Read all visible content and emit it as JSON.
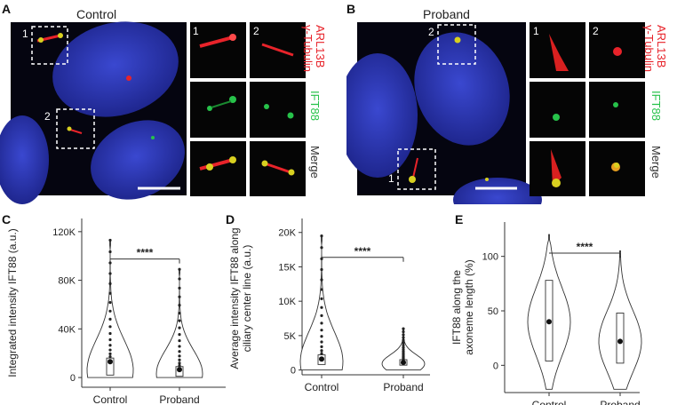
{
  "panels": {
    "A": {
      "letter": "A",
      "title": "Control"
    },
    "B": {
      "letter": "B",
      "title": "Proband"
    }
  },
  "image_panels": {
    "zoom_numbers": [
      "1",
      "2"
    ],
    "row_labels": {
      "arl13b": "ARL13B",
      "tubulin": "γ-Tubulin",
      "ift88": "IFT88",
      "merge": "Merge"
    },
    "colors": {
      "nucleus": "#2a38b8",
      "red": "#e8232a",
      "green": "#27c24a",
      "merge": "#d8d020"
    }
  },
  "chart_data": [
    {
      "panel": "C",
      "type": "violin",
      "categories": [
        "Control",
        "Proband"
      ],
      "ylabel": "Integrated intensity IFT88 (a.u.)",
      "yticks": [
        "0",
        "40K",
        "80K",
        "120K"
      ],
      "ylim": [
        -8000,
        125000
      ],
      "significance": "****",
      "summary": [
        {
          "category": "Control",
          "median": 6000,
          "mean": 13000,
          "q1": 2000,
          "q3": 16000,
          "whisker_low": 0,
          "whisker_high": 113000
        },
        {
          "category": "Proband",
          "median": 3000,
          "mean": 6500,
          "q1": 1000,
          "q3": 9000,
          "whisker_low": 0,
          "whisker_high": 89000
        }
      ]
    },
    {
      "panel": "D",
      "type": "violin",
      "categories": [
        "Control",
        "Proband"
      ],
      "ylabel_lines": [
        "Average intensity IFT88 along",
        "ciliary center line (a.u.)"
      ],
      "yticks": [
        "0",
        "5K",
        "10K",
        "15K",
        "20K"
      ],
      "ylim": [
        -700,
        21000
      ],
      "significance": "****",
      "summary": [
        {
          "category": "Control",
          "median": 1200,
          "mean": 1600,
          "q1": 800,
          "q3": 2200,
          "whisker_low": 0,
          "whisker_high": 19500
        },
        {
          "category": "Proband",
          "median": 900,
          "mean": 1100,
          "q1": 700,
          "q3": 1500,
          "whisker_low": 0,
          "whisker_high": 6000
        }
      ]
    },
    {
      "panel": "E",
      "type": "violin",
      "categories": [
        "Control",
        "Proband"
      ],
      "ylabel_lines": [
        "IFT88 along the",
        "axoneme length (%)"
      ],
      "yticks": [
        "0",
        "50",
        "100"
      ],
      "ylim": [
        -25,
        125
      ],
      "significance": "****",
      "summary": [
        {
          "category": "Control",
          "median": 40,
          "mean": 40,
          "q1": 4,
          "q3": 78,
          "whisker_low": -22,
          "whisker_high": 120
        },
        {
          "category": "Proband",
          "median": 22,
          "mean": 22,
          "q1": 2,
          "q3": 48,
          "whisker_low": -22,
          "whisker_high": 105
        }
      ]
    }
  ],
  "chart_letters": [
    "C",
    "D",
    "E"
  ]
}
